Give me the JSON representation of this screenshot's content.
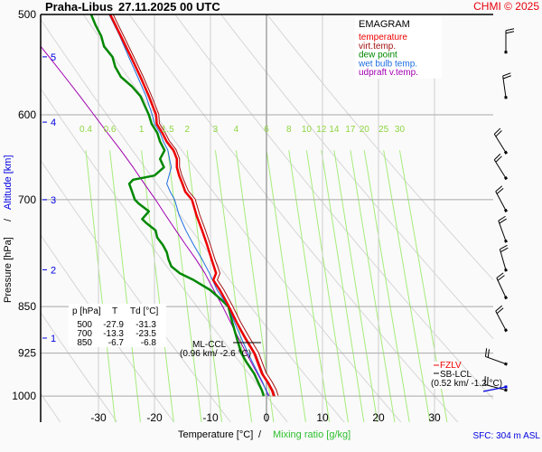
{
  "header": {
    "station": "Praha-Libus",
    "datetime": "27.11.2025 00 UTC",
    "copyright": "CHMI © 2025"
  },
  "chart_data": {
    "type": "line",
    "title": "EMAGRAM",
    "xlabel_temperature": "Temperature [°C]",
    "xlabel_separator": "/",
    "xlabel_mixing": "Mixing ratio [g/kg]",
    "ylabel_pressure": "Pressure [hPa]",
    "ylabel_separator": "/",
    "ylabel_altitude": "Altitude [km]",
    "xlim": [
      -40,
      40
    ],
    "ylim_hpa": [
      1000,
      500
    ],
    "pressure_ticks": [
      500,
      600,
      700,
      850,
      925,
      1000
    ],
    "temperature_ticks": [
      -30,
      -20,
      -10,
      0,
      10,
      20,
      30
    ],
    "altitude_ticks": [
      {
        "km": 5,
        "hpa": 540
      },
      {
        "km": 4,
        "hpa": 608
      },
      {
        "km": 3,
        "hpa": 700
      },
      {
        "km": 2,
        "hpa": 795
      },
      {
        "km": 1,
        "hpa": 900
      }
    ],
    "mixing_ratio_labels": [
      "0.4",
      "0.6",
      "1",
      "1.5",
      "2",
      "3",
      "4",
      "6",
      "8",
      "10",
      "12",
      "14",
      "17",
      "20",
      "25",
      "30"
    ],
    "legend": [
      {
        "name": "temperature",
        "color": "#ee0000"
      },
      {
        "name": "virt.temp.",
        "color": "#a01010"
      },
      {
        "name": "dew point",
        "color": "#008800"
      },
      {
        "name": "wet bulb temp.",
        "color": "#1e6ee0"
      },
      {
        "name": "udpraft v.temp.",
        "color": "#a000b0"
      }
    ],
    "series": [
      {
        "name": "temperature",
        "points": [
          [
            1000,
            1.3
          ],
          [
            990,
            1.0
          ],
          [
            975,
            0.2
          ],
          [
            960,
            -0.8
          ],
          [
            925,
            -2.2
          ],
          [
            900,
            -3.8
          ],
          [
            875,
            -5.3
          ],
          [
            850,
            -6.7
          ],
          [
            825,
            -8.3
          ],
          [
            810,
            -9.5
          ],
          [
            800,
            -9.0
          ],
          [
            780,
            -9.8
          ],
          [
            760,
            -10.6
          ],
          [
            740,
            -11.5
          ],
          [
            720,
            -12.5
          ],
          [
            700,
            -13.3
          ],
          [
            690,
            -14.5
          ],
          [
            680,
            -15.0
          ],
          [
            670,
            -15.6
          ],
          [
            660,
            -16.0
          ],
          [
            650,
            -16.0
          ],
          [
            640,
            -16.6
          ],
          [
            630,
            -17.8
          ],
          [
            620,
            -18.6
          ],
          [
            610,
            -19.6
          ],
          [
            600,
            -19.7
          ],
          [
            580,
            -21.0
          ],
          [
            560,
            -22.5
          ],
          [
            540,
            -24.2
          ],
          [
            520,
            -26.0
          ],
          [
            500,
            -27.9
          ]
        ]
      },
      {
        "name": "virt.temp.",
        "points": [
          [
            1000,
            1.8
          ],
          [
            990,
            1.5
          ],
          [
            975,
            0.7
          ],
          [
            960,
            -0.3
          ],
          [
            925,
            -1.7
          ],
          [
            900,
            -3.3
          ],
          [
            875,
            -4.9
          ],
          [
            850,
            -6.3
          ],
          [
            825,
            -7.9
          ],
          [
            810,
            -9.1
          ],
          [
            800,
            -8.6
          ],
          [
            780,
            -9.5
          ],
          [
            760,
            -10.3
          ],
          [
            740,
            -11.2
          ],
          [
            720,
            -12.2
          ],
          [
            700,
            -13.0
          ],
          [
            690,
            -14.2
          ],
          [
            680,
            -14.8
          ],
          [
            670,
            -15.4
          ],
          [
            660,
            -15.8
          ],
          [
            650,
            -15.8
          ],
          [
            640,
            -16.4
          ],
          [
            630,
            -17.6
          ],
          [
            620,
            -18.4
          ],
          [
            610,
            -19.4
          ],
          [
            600,
            -19.5
          ],
          [
            580,
            -20.8
          ],
          [
            560,
            -22.3
          ],
          [
            540,
            -24.0
          ],
          [
            520,
            -25.8
          ],
          [
            500,
            -27.7
          ]
        ]
      },
      {
        "name": "dew point",
        "points": [
          [
            1000,
            -0.5
          ],
          [
            990,
            -0.8
          ],
          [
            975,
            -1.5
          ],
          [
            960,
            -2.2
          ],
          [
            940,
            -3.6
          ],
          [
            925,
            -4.5
          ],
          [
            900,
            -5.3
          ],
          [
            875,
            -6.1
          ],
          [
            850,
            -6.8
          ],
          [
            840,
            -8.0
          ],
          [
            825,
            -10.0
          ],
          [
            810,
            -13.0
          ],
          [
            800,
            -15.5
          ],
          [
            790,
            -17.0
          ],
          [
            780,
            -17.5
          ],
          [
            770,
            -17.8
          ],
          [
            760,
            -18.5
          ],
          [
            750,
            -19.5
          ],
          [
            740,
            -19.8
          ],
          [
            730,
            -21.5
          ],
          [
            725,
            -22.2
          ],
          [
            715,
            -21.0
          ],
          [
            705,
            -22.8
          ],
          [
            700,
            -23.5
          ],
          [
            690,
            -24.0
          ],
          [
            680,
            -24.5
          ],
          [
            675,
            -23.8
          ],
          [
            670,
            -20.0
          ],
          [
            660,
            -18.3
          ],
          [
            650,
            -19.0
          ],
          [
            640,
            -18.2
          ],
          [
            630,
            -19.0
          ],
          [
            620,
            -19.5
          ],
          [
            610,
            -20.5
          ],
          [
            600,
            -21.0
          ],
          [
            580,
            -22.5
          ],
          [
            570,
            -24.0
          ],
          [
            560,
            -26.0
          ],
          [
            550,
            -27.0
          ],
          [
            540,
            -27.5
          ],
          [
            530,
            -29.0
          ],
          [
            520,
            -29.5
          ],
          [
            510,
            -30.5
          ],
          [
            500,
            -31.3
          ]
        ]
      },
      {
        "name": "wet bulb temp.",
        "points": [
          [
            1000,
            0.3
          ],
          [
            975,
            -0.7
          ],
          [
            950,
            -2.0
          ],
          [
            925,
            -3.3
          ],
          [
            900,
            -4.5
          ],
          [
            875,
            -5.7
          ],
          [
            850,
            -6.8
          ],
          [
            825,
            -8.8
          ],
          [
            800,
            -10.2
          ],
          [
            780,
            -11.5
          ],
          [
            760,
            -13.0
          ],
          [
            740,
            -14.4
          ],
          [
            720,
            -15.6
          ],
          [
            700,
            -16.4
          ],
          [
            690,
            -17.2
          ],
          [
            680,
            -17.8
          ],
          [
            670,
            -17.4
          ],
          [
            660,
            -17.0
          ],
          [
            650,
            -17.3
          ],
          [
            640,
            -17.6
          ],
          [
            630,
            -18.4
          ],
          [
            620,
            -19.0
          ],
          [
            610,
            -20.0
          ],
          [
            600,
            -20.4
          ],
          [
            580,
            -21.5
          ],
          [
            560,
            -23.0
          ],
          [
            540,
            -24.6
          ],
          [
            520,
            -26.2
          ],
          [
            500,
            -28.1
          ]
        ]
      },
      {
        "name": "udpraft v.temp.",
        "points": [
          [
            1000,
            0.5
          ],
          [
            975,
            -0.8
          ],
          [
            950,
            -2.2
          ],
          [
            925,
            -3.6
          ],
          [
            900,
            -5.0
          ],
          [
            875,
            -6.4
          ],
          [
            850,
            -7.8
          ],
          [
            825,
            -9.4
          ],
          [
            800,
            -11.0
          ],
          [
            780,
            -12.6
          ],
          [
            760,
            -14.4
          ],
          [
            740,
            -16.2
          ],
          [
            720,
            -18.0
          ],
          [
            700,
            -19.8
          ],
          [
            680,
            -21.8
          ],
          [
            660,
            -23.8
          ],
          [
            640,
            -26.0
          ],
          [
            620,
            -28.4
          ],
          [
            600,
            -30.8
          ],
          [
            580,
            -33.3
          ],
          [
            560,
            -36.0
          ],
          [
            540,
            -38.8
          ],
          [
            520,
            -41.8
          ],
          [
            500,
            -44.6
          ]
        ]
      }
    ],
    "wind_barbs_hpa": [
      525,
      570,
      630,
      660,
      700,
      740,
      780,
      820,
      870,
      925,
      970
    ],
    "table": {
      "headers": [
        "p [hPa]",
        "T",
        "Td [°C]"
      ],
      "rows": [
        [
          "500",
          "-27.9",
          "-31.3"
        ],
        [
          "700",
          "-13.3",
          "-23.5"
        ],
        [
          "850",
          "-6.7",
          "-6.8"
        ]
      ]
    },
    "annotations": {
      "ml_ccl_label": "ML-CCL",
      "ml_ccl_value": "(0.96 km/ -2.6 °C)",
      "sb_lcl_label": "SB-LCL",
      "sb_lcl_value": "(0.52 km/ -1.2 °C)",
      "fzl_label": "FZLV"
    },
    "surface": "SFC: 304 m ASL"
  }
}
